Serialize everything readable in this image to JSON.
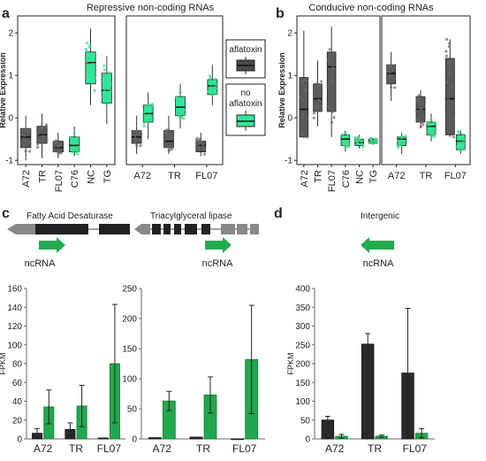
{
  "panels": {
    "a": {
      "letter": "a",
      "title": "Repressive non-coding RNAs"
    },
    "b": {
      "letter": "b",
      "title": "Conducive non-coding RNAs"
    },
    "c": {
      "letter": "c"
    },
    "d": {
      "letter": "d"
    }
  },
  "legend": {
    "aflatoxin": "aflatoxin",
    "no_aflatoxin_line1": "no",
    "no_aflatoxin_line2": "aflatoxin"
  },
  "genes": {
    "c1": {
      "title": "Fatty Acid Desaturase",
      "ncrna": "ncRNA"
    },
    "c2": {
      "title": "Triacylglyceral lipase",
      "ncrna": "ncRNA"
    },
    "d": {
      "title": "Intergenic",
      "ncrna": "ncRNA"
    }
  },
  "colors": {
    "dark": "#3a3a3a",
    "green": "#2ecc71",
    "light_green": "#2ee89a",
    "mid_gray": "#888888"
  },
  "chart_data": [
    {
      "id": "a1",
      "type": "box",
      "ylabel": "Relative Expression",
      "ylim": [
        -1.1,
        2.4
      ],
      "yticks": [
        -1,
        0,
        1,
        2
      ],
      "categories": [
        "A72",
        "TR",
        "FL07",
        "C76",
        "NC",
        "TG"
      ],
      "boxes": [
        {
          "cat": "A72",
          "q1": -0.7,
          "med": -0.45,
          "q3": -0.25,
          "lo": -1.0,
          "hi": 0.05,
          "group": "dark"
        },
        {
          "cat": "TR",
          "q1": -0.6,
          "med": -0.4,
          "q3": -0.2,
          "lo": -0.95,
          "hi": 0.1,
          "group": "dark"
        },
        {
          "cat": "FL07",
          "q1": -0.8,
          "med": -0.7,
          "q3": -0.55,
          "lo": -0.95,
          "hi": -0.35,
          "group": "dark"
        },
        {
          "cat": "C76",
          "q1": -0.8,
          "med": -0.65,
          "q3": -0.45,
          "lo": -0.9,
          "hi": -0.2,
          "group": "green"
        },
        {
          "cat": "NC",
          "q1": 0.8,
          "med": 1.3,
          "q3": 1.55,
          "lo": 0.3,
          "hi": 2.1,
          "group": "green"
        },
        {
          "cat": "TG",
          "q1": 0.35,
          "med": 0.65,
          "q3": 1.05,
          "lo": -0.15,
          "hi": 1.45,
          "group": "green"
        }
      ]
    },
    {
      "id": "a2",
      "type": "box",
      "ylim": [
        -1.1,
        2.4
      ],
      "categories": [
        "A72",
        "TR",
        "FL07"
      ],
      "boxes": [
        {
          "cat": "A72",
          "q1": -0.6,
          "med": -0.45,
          "q3": -0.3,
          "lo": -0.85,
          "hi": 0.05,
          "group": "dark",
          "pos": 0.82
        },
        {
          "cat": "A72",
          "q1": -0.1,
          "med": 0.1,
          "q3": 0.3,
          "lo": -0.5,
          "hi": 0.6,
          "group": "green",
          "pos": 1.18
        },
        {
          "cat": "TR",
          "q1": -0.7,
          "med": -0.55,
          "q3": -0.3,
          "lo": -0.85,
          "hi": 0.05,
          "group": "dark",
          "pos": 1.82
        },
        {
          "cat": "TR",
          "q1": 0.05,
          "med": 0.25,
          "q3": 0.5,
          "lo": -0.25,
          "hi": 0.8,
          "group": "green",
          "pos": 2.18
        },
        {
          "cat": "FL07",
          "q1": -0.8,
          "med": -0.65,
          "q3": -0.55,
          "lo": -0.9,
          "hi": -0.35,
          "group": "dark",
          "pos": 2.82
        },
        {
          "cat": "FL07",
          "q1": 0.55,
          "med": 0.75,
          "q3": 0.9,
          "lo": 0.3,
          "hi": 1.25,
          "group": "green",
          "pos": 3.18
        }
      ]
    },
    {
      "id": "b1",
      "type": "box",
      "ylabel": "Relative Expression",
      "ylim": [
        -1.1,
        2.4
      ],
      "yticks": [
        -1,
        0,
        1,
        2
      ],
      "categories": [
        "A72",
        "TR",
        "FL07",
        "C76",
        "NC",
        "TG"
      ],
      "boxes": [
        {
          "cat": "A72",
          "q1": -0.45,
          "med": 0.2,
          "q3": 0.95,
          "lo": -0.45,
          "hi": 2.05,
          "group": "dark"
        },
        {
          "cat": "TR",
          "q1": 0.15,
          "med": 0.45,
          "q3": 0.8,
          "lo": -0.2,
          "hi": 1.35,
          "group": "dark"
        },
        {
          "cat": "FL07",
          "q1": 0.15,
          "med": 1.2,
          "q3": 1.55,
          "lo": -0.45,
          "hi": 2.15,
          "group": "dark"
        },
        {
          "cat": "C76",
          "q1": -0.65,
          "med": -0.5,
          "q3": -0.4,
          "lo": -0.8,
          "hi": -0.3,
          "group": "green"
        },
        {
          "cat": "NC",
          "q1": -0.65,
          "med": -0.58,
          "q3": -0.5,
          "lo": -0.72,
          "hi": -0.4,
          "group": "green"
        },
        {
          "cat": "TG",
          "q1": -0.6,
          "med": -0.55,
          "q3": -0.5,
          "lo": -0.62,
          "hi": -0.48,
          "group": "green"
        }
      ]
    },
    {
      "id": "b2",
      "type": "box",
      "ylim": [
        -1.1,
        2.4
      ],
      "categories": [
        "A72",
        "TR",
        "FL07"
      ],
      "boxes": [
        {
          "cat": "A72",
          "q1": 0.8,
          "med": 1.05,
          "q3": 1.25,
          "lo": 0.4,
          "hi": 1.55,
          "group": "dark",
          "pos": 0.82
        },
        {
          "cat": "A72",
          "q1": -0.65,
          "med": -0.5,
          "q3": -0.45,
          "lo": -0.85,
          "hi": -0.35,
          "group": "green",
          "pos": 1.18
        },
        {
          "cat": "TR",
          "q1": -0.1,
          "med": 0.2,
          "q3": 0.5,
          "lo": -0.25,
          "hi": 0.65,
          "group": "dark",
          "pos": 1.82
        },
        {
          "cat": "TR",
          "q1": -0.4,
          "med": -0.2,
          "q3": -0.1,
          "lo": -0.55,
          "hi": 0.1,
          "group": "green",
          "pos": 2.18
        },
        {
          "cat": "FL07",
          "q1": -0.4,
          "med": 0.45,
          "q3": 1.4,
          "lo": -0.45,
          "hi": 1.85,
          "group": "dark",
          "pos": 2.82
        },
        {
          "cat": "FL07",
          "q1": -0.75,
          "med": -0.55,
          "q3": -0.4,
          "lo": -0.85,
          "hi": -0.3,
          "group": "green",
          "pos": 3.18
        }
      ]
    },
    {
      "id": "c1",
      "type": "bar",
      "ylabel": "FPKM",
      "ylim": [
        0,
        160
      ],
      "yticks": [
        0,
        20,
        40,
        60,
        80,
        100,
        120,
        140,
        160
      ],
      "categories": [
        "A72",
        "TR",
        "FL07"
      ],
      "series": [
        {
          "group": "dark",
          "values": [
            6,
            10,
            1
          ],
          "err": [
            5,
            7,
            0
          ]
        },
        {
          "group": "green",
          "values": [
            34,
            35,
            80
          ],
          "err": [
            18,
            22,
            63
          ]
        }
      ]
    },
    {
      "id": "c2",
      "type": "bar",
      "ylim": [
        0,
        250
      ],
      "yticks": [
        0,
        50,
        100,
        150,
        200,
        250
      ],
      "categories": [
        "A72",
        "TR",
        "FL07"
      ],
      "series": [
        {
          "group": "dark",
          "values": [
            2,
            3,
            0
          ],
          "err": [
            0,
            0,
            0
          ]
        },
        {
          "group": "green",
          "values": [
            63,
            73,
            132
          ],
          "err": [
            16,
            30,
            90
          ]
        }
      ]
    },
    {
      "id": "d",
      "type": "bar",
      "ylabel": "FPKM",
      "ylim": [
        0,
        400
      ],
      "yticks": [
        0,
        50,
        100,
        150,
        200,
        250,
        300,
        350,
        400
      ],
      "categories": [
        "A72",
        "TR",
        "FL07"
      ],
      "series": [
        {
          "group": "dark",
          "values": [
            50,
            252,
            175
          ],
          "err": [
            10,
            28,
            172
          ]
        },
        {
          "group": "green",
          "values": [
            7,
            7,
            15
          ],
          "err": [
            5,
            3,
            12
          ]
        }
      ]
    }
  ]
}
